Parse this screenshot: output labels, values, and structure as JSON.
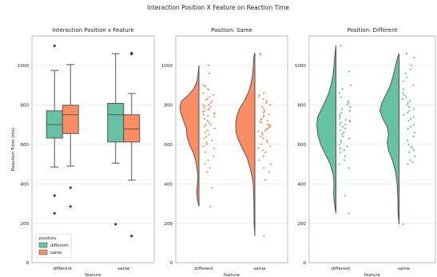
{
  "figure": {
    "suptitle": "Interaction Position X Feature on Reaction Time"
  },
  "colors": {
    "different": "#66c2a5",
    "same": "#fc8d62",
    "grid": "#e6e6e6",
    "frame": "#a0a0a0",
    "box_edge": "#555555"
  },
  "chart_data": [
    {
      "id": "panel-1",
      "type": "box",
      "title": "Interaction Position x Feature",
      "xlabel": "feature",
      "ylabel": "Reaction Time (ms)",
      "categories": [
        "different",
        "same"
      ],
      "ylim": [
        0,
        1150
      ],
      "yticks": [
        0,
        200,
        400,
        600,
        800,
        1000
      ],
      "legend": {
        "title": "position",
        "placement": "lower-left",
        "entries": [
          "different",
          "same"
        ]
      },
      "series": [
        {
          "name": "different",
          "boxes": [
            {
              "category": "different",
              "whisker_low": 485,
              "q1": 632,
              "median": 700,
              "q3": 770,
              "whisker_high": 975,
              "outliers": [
                1100,
                340,
                250
              ]
            },
            {
              "category": "same",
              "whisker_low": 505,
              "q1": 612,
              "median": 750,
              "q3": 808,
              "whisker_high": 1060,
              "outliers": [
                195
              ]
            }
          ]
        },
        {
          "name": "same",
          "boxes": [
            {
              "category": "different",
              "whisker_low": 490,
              "q1": 655,
              "median": 750,
              "q3": 798,
              "whisker_high": 1005,
              "outliers": [
                380,
                285
              ]
            },
            {
              "category": "same",
              "whisker_low": 418,
              "q1": 612,
              "median": 678,
              "q3": 750,
              "whisker_high": 858,
              "outliers": [
                1058,
                1063,
                135
              ]
            }
          ]
        }
      ]
    },
    {
      "id": "panel-2",
      "type": "raincloud",
      "title": "Position: Same",
      "xlabel": "feature",
      "categories": [
        "different",
        "same"
      ],
      "ylim": [
        0,
        1150
      ],
      "yticks": [
        0,
        200,
        400,
        600,
        800,
        1000
      ],
      "color": "same",
      "groups": [
        {
          "category": "different",
          "range": [
            285,
            1000
          ],
          "density": [
            [
              285,
              0
            ],
            [
              320,
              0.08
            ],
            [
              360,
              0.12
            ],
            [
              400,
              0.08
            ],
            [
              440,
              0.05
            ],
            [
              480,
              0.1
            ],
            [
              520,
              0.18
            ],
            [
              560,
              0.3
            ],
            [
              600,
              0.5
            ],
            [
              640,
              0.62
            ],
            [
              680,
              0.66
            ],
            [
              720,
              0.8
            ],
            [
              760,
              0.95
            ],
            [
              790,
              1.0
            ],
            [
              820,
              0.9
            ],
            [
              850,
              0.55
            ],
            [
              880,
              0.28
            ],
            [
              920,
              0.1
            ],
            [
              960,
              0.04
            ],
            [
              1000,
              0
            ]
          ],
          "points": [
            1000,
            960,
            900,
            895,
            880,
            878,
            860,
            850,
            840,
            830,
            825,
            820,
            810,
            800,
            800,
            795,
            790,
            785,
            780,
            775,
            770,
            765,
            760,
            755,
            750,
            745,
            740,
            730,
            720,
            710,
            700,
            700,
            690,
            680,
            670,
            660,
            650,
            640,
            630,
            620,
            610,
            600,
            590,
            580,
            560,
            540,
            520,
            500,
            480,
            460,
            380,
            285
          ]
        },
        {
          "category": "same",
          "range": [
            135,
            1065
          ],
          "density": [
            [
              135,
              0
            ],
            [
              200,
              0.04
            ],
            [
              300,
              0.05
            ],
            [
              400,
              0.08
            ],
            [
              440,
              0.15
            ],
            [
              480,
              0.25
            ],
            [
              530,
              0.4
            ],
            [
              580,
              0.65
            ],
            [
              620,
              0.85
            ],
            [
              660,
              0.98
            ],
            [
              700,
              1.0
            ],
            [
              740,
              0.95
            ],
            [
              780,
              0.8
            ],
            [
              820,
              0.55
            ],
            [
              860,
              0.35
            ],
            [
              900,
              0.22
            ],
            [
              950,
              0.12
            ],
            [
              1000,
              0.08
            ],
            [
              1040,
              0.06
            ],
            [
              1065,
              0
            ]
          ],
          "points": [
            1060,
            1055,
            860,
            850,
            840,
            830,
            820,
            810,
            800,
            790,
            780,
            770,
            760,
            750,
            745,
            740,
            730,
            725,
            720,
            715,
            710,
            700,
            700,
            695,
            690,
            685,
            680,
            675,
            670,
            665,
            660,
            650,
            640,
            630,
            620,
            610,
            600,
            590,
            580,
            570,
            560,
            540,
            520,
            500,
            480,
            460,
            420,
            135
          ]
        }
      ]
    },
    {
      "id": "panel-3",
      "type": "raincloud",
      "title": "Position: Different",
      "xlabel": "feature",
      "categories": [
        "different",
        "same"
      ],
      "ylim": [
        0,
        1150
      ],
      "yticks": [
        0,
        200,
        400,
        600,
        800,
        1000
      ],
      "color": "different",
      "groups": [
        {
          "category": "different",
          "range": [
            250,
            1100
          ],
          "density": [
            [
              250,
              0
            ],
            [
              300,
              0.08
            ],
            [
              350,
              0.12
            ],
            [
              400,
              0.1
            ],
            [
              450,
              0.15
            ],
            [
              500,
              0.3
            ],
            [
              550,
              0.55
            ],
            [
              600,
              0.8
            ],
            [
              650,
              0.95
            ],
            [
              700,
              1.0
            ],
            [
              740,
              0.95
            ],
            [
              780,
              0.75
            ],
            [
              820,
              0.55
            ],
            [
              860,
              0.38
            ],
            [
              900,
              0.26
            ],
            [
              950,
              0.15
            ],
            [
              1000,
              0.1
            ],
            [
              1050,
              0.06
            ],
            [
              1100,
              0
            ]
          ],
          "points": [
            1100,
            970,
            900,
            880,
            860,
            840,
            820,
            810,
            800,
            790,
            780,
            770,
            760,
            750,
            740,
            730,
            725,
            720,
            715,
            710,
            700,
            700,
            690,
            680,
            670,
            660,
            650,
            640,
            630,
            620,
            610,
            600,
            590,
            580,
            570,
            560,
            540,
            520,
            500,
            480,
            340,
            250
          ]
        },
        {
          "category": "same",
          "range": [
            195,
            1060
          ],
          "density": [
            [
              195,
              0
            ],
            [
              250,
              0.05
            ],
            [
              320,
              0.06
            ],
            [
              400,
              0.1
            ],
            [
              460,
              0.18
            ],
            [
              520,
              0.35
            ],
            [
              570,
              0.55
            ],
            [
              610,
              0.62
            ],
            [
              650,
              0.55
            ],
            [
              690,
              0.62
            ],
            [
              730,
              0.85
            ],
            [
              770,
              1.0
            ],
            [
              810,
              0.9
            ],
            [
              850,
              0.7
            ],
            [
              900,
              0.45
            ],
            [
              950,
              0.3
            ],
            [
              1000,
              0.18
            ],
            [
              1040,
              0.08
            ],
            [
              1060,
              0
            ]
          ],
          "points": [
            1060,
            1040,
            1000,
            980,
            960,
            940,
            920,
            900,
            880,
            860,
            850,
            840,
            830,
            820,
            810,
            800,
            790,
            780,
            770,
            760,
            750,
            740,
            730,
            720,
            700,
            690,
            680,
            660,
            640,
            620,
            600,
            590,
            580,
            570,
            560,
            540,
            520,
            510,
            500,
            195
          ]
        }
      ]
    }
  ]
}
